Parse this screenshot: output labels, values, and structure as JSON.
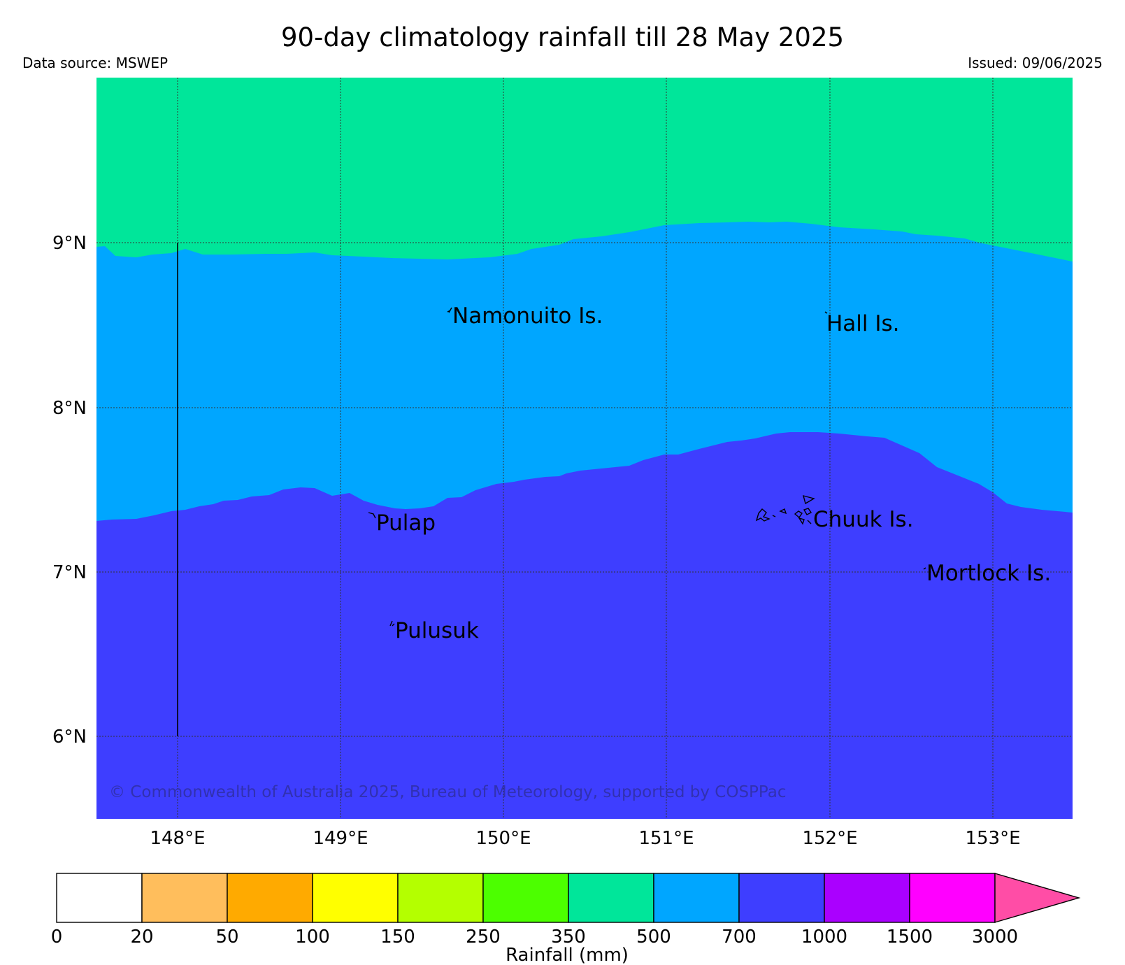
{
  "header": {
    "title": "90-day climatology rainfall till 28 May 2025",
    "data_source": "Data source: MSWEP",
    "issued": "Issued: 09/06/2025"
  },
  "map": {
    "lat_labels": [
      "9°N",
      "8°N",
      "7°N",
      "6°N"
    ],
    "lon_labels": [
      "148°E",
      "149°E",
      "150°E",
      "151°E",
      "152°E",
      "153°E"
    ],
    "places": [
      "Namonuito Is.",
      "Hall Is.",
      "Pulap",
      "Chuuk Is.",
      "Mortlock Is.",
      "Pulusuk"
    ],
    "copyright": "© Commonwealth of Australia 2025, Bureau of Meteorology, supported by COSPPac",
    "region_colors": {
      "350-500": "#00e69a",
      "500-700": "#00a6ff",
      "700-1000": "#3e3eff"
    }
  },
  "colorbar": {
    "label": "Rainfall (mm)",
    "ticks": [
      "0",
      "20",
      "50",
      "100",
      "150",
      "250",
      "350",
      "500",
      "700",
      "1000",
      "1500",
      "3000"
    ],
    "colors": [
      "#ffffff",
      "#ffbe5c",
      "#ffaa00",
      "#ffff00",
      "#b4ff00",
      "#4cff00",
      "#00e69a",
      "#00a6ff",
      "#3e3eff",
      "#aa00ff",
      "#ff00ff",
      "#ff4da6"
    ]
  }
}
